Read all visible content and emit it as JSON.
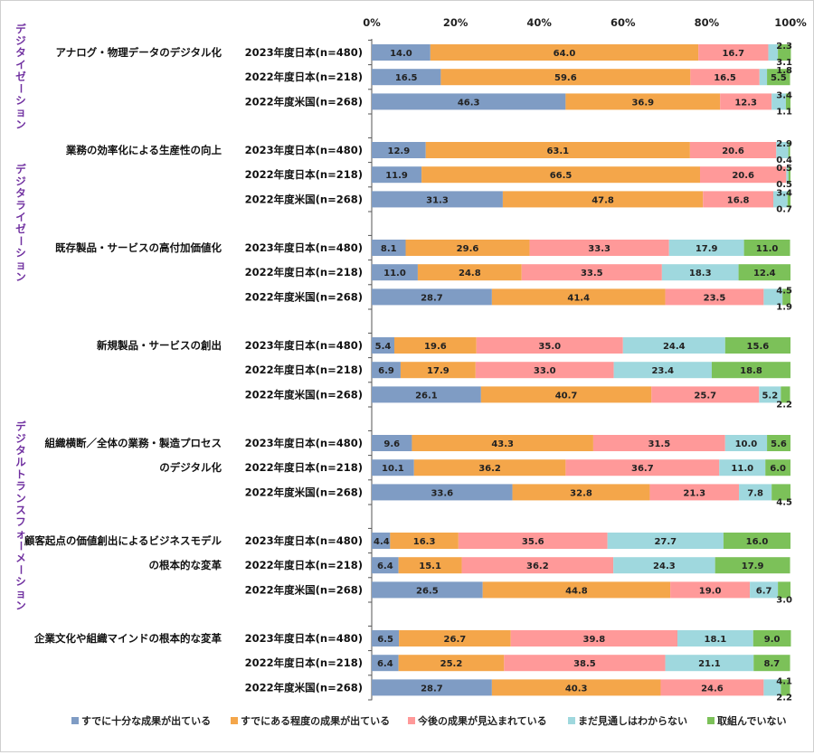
{
  "chart_data": {
    "type": "bar",
    "orientation": "horizontal",
    "stacked": true,
    "xlim": [
      0,
      100
    ],
    "x_ticks": [
      "0%",
      "20%",
      "40%",
      "60%",
      "80%",
      "100%"
    ],
    "grid": false,
    "legend_position": "bottom",
    "group_labels": [
      {
        "text": "デジタイゼーション",
        "spans_categories": [
          0,
          0
        ]
      },
      {
        "text": "デジタライゼーション",
        "spans_categories": [
          1,
          2
        ]
      },
      {
        "text": "デジタルトランスフォーメーション",
        "spans_categories": [
          3,
          6
        ]
      }
    ],
    "series": [
      {
        "name": "すでに十分な成果が出ている",
        "color": "#7f9cc4"
      },
      {
        "name": "すでにある程度の成果が出ている",
        "color": "#f4a64a"
      },
      {
        "name": "今後の成果が見込まれている",
        "color": "#ff9999"
      },
      {
        "name": "まだ見通しはわからない",
        "color": "#9fd8de"
      },
      {
        "name": "取組んでいない",
        "color": "#7cc159"
      }
    ],
    "categories": [
      {
        "label_lines": [
          "アナログ・物理データのデジタル化"
        ],
        "rows": [
          {
            "label": "2023年度日本(n=480)",
            "values": [
              14.0,
              64.0,
              16.7,
              2.3,
              3.1
            ]
          },
          {
            "label": "2022年度日本(n=218)",
            "values": [
              16.5,
              59.6,
              16.5,
              1.8,
              5.5
            ]
          },
          {
            "label": "2022年度米国(n=268)",
            "values": [
              46.3,
              36.9,
              12.3,
              3.4,
              1.1
            ]
          }
        ]
      },
      {
        "label_lines": [
          "業務の効率化による生産性の向上"
        ],
        "rows": [
          {
            "label": "2023年度日本(n=480)",
            "values": [
              12.9,
              63.1,
              20.6,
              2.9,
              0.4
            ]
          },
          {
            "label": "2022年度日本(n=218)",
            "values": [
              11.9,
              66.5,
              20.6,
              0.5,
              0.5
            ]
          },
          {
            "label": "2022年度米国(n=268)",
            "values": [
              31.3,
              47.8,
              16.8,
              3.4,
              0.7
            ]
          }
        ]
      },
      {
        "label_lines": [
          "既存製品・サービスの高付加価値化"
        ],
        "rows": [
          {
            "label": "2023年度日本(n=480)",
            "values": [
              8.1,
              29.6,
              33.3,
              17.9,
              11.0
            ]
          },
          {
            "label": "2022年度日本(n=218)",
            "values": [
              11.0,
              24.8,
              33.5,
              18.3,
              12.4
            ]
          },
          {
            "label": "2022年度米国(n=268)",
            "values": [
              28.7,
              41.4,
              23.5,
              4.5,
              1.9
            ]
          }
        ]
      },
      {
        "label_lines": [
          "新規製品・サービスの創出"
        ],
        "rows": [
          {
            "label": "2023年度日本(n=480)",
            "values": [
              5.4,
              19.6,
              35.0,
              24.4,
              15.6
            ]
          },
          {
            "label": "2022年度日本(n=218)",
            "values": [
              6.9,
              17.9,
              33.0,
              23.4,
              18.8
            ]
          },
          {
            "label": "2022年度米国(n=268)",
            "values": [
              26.1,
              40.7,
              25.7,
              5.2,
              2.2
            ]
          }
        ]
      },
      {
        "label_lines": [
          "組織横断／全体の業務・製造プロセス",
          "のデジタル化"
        ],
        "rows": [
          {
            "label": "2023年度日本(n=480)",
            "values": [
              9.6,
              43.3,
              31.5,
              10.0,
              5.6
            ]
          },
          {
            "label": "2022年度日本(n=218)",
            "values": [
              10.1,
              36.2,
              36.7,
              11.0,
              6.0
            ]
          },
          {
            "label": "2022年度米国(n=268)",
            "values": [
              33.6,
              32.8,
              21.3,
              7.8,
              4.5
            ]
          }
        ]
      },
      {
        "label_lines": [
          "顧客起点の価値創出によるビジネスモデル",
          "の根本的な変革"
        ],
        "rows": [
          {
            "label": "2023年度日本(n=480)",
            "values": [
              4.4,
              16.3,
              35.6,
              27.7,
              16.0
            ]
          },
          {
            "label": "2022年度日本(n=218)",
            "values": [
              6.4,
              15.1,
              36.2,
              24.3,
              17.9
            ]
          },
          {
            "label": "2022年度米国(n=268)",
            "values": [
              26.5,
              44.8,
              19.0,
              6.7,
              3.0
            ]
          }
        ]
      },
      {
        "label_lines": [
          "企業文化や組織マインドの根本的な変革"
        ],
        "rows": [
          {
            "label": "2023年度日本(n=480)",
            "values": [
              6.5,
              26.7,
              39.8,
              18.1,
              9.0
            ]
          },
          {
            "label": "2022年度日本(n=218)",
            "values": [
              6.4,
              25.2,
              38.5,
              21.1,
              8.7
            ]
          },
          {
            "label": "2022年度米国(n=268)",
            "values": [
              28.7,
              40.3,
              24.6,
              4.1,
              2.2
            ]
          }
        ]
      }
    ]
  }
}
